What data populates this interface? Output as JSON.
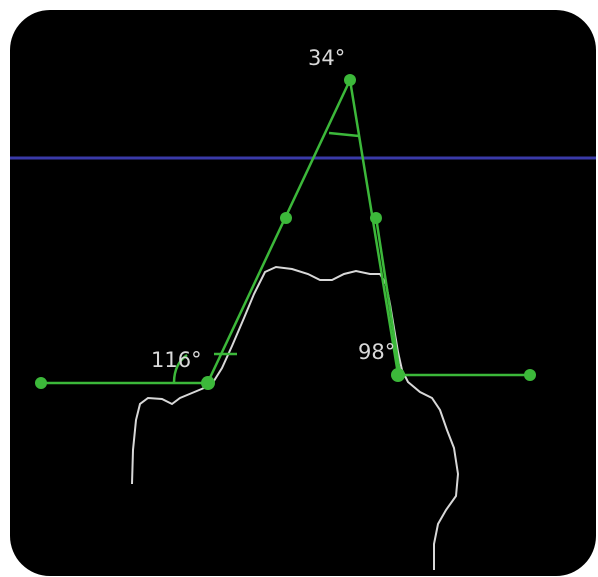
{
  "angles": [
    {
      "id": "apex",
      "label": "34°"
    },
    {
      "id": "left",
      "label": "116°"
    },
    {
      "id": "right",
      "label": "98°"
    }
  ],
  "colors": {
    "background": "#000000",
    "reference_line": "#3a3aa8",
    "construction": "#3cb83a",
    "contour": "#d8d8d8",
    "text": "#d9d9d9"
  }
}
